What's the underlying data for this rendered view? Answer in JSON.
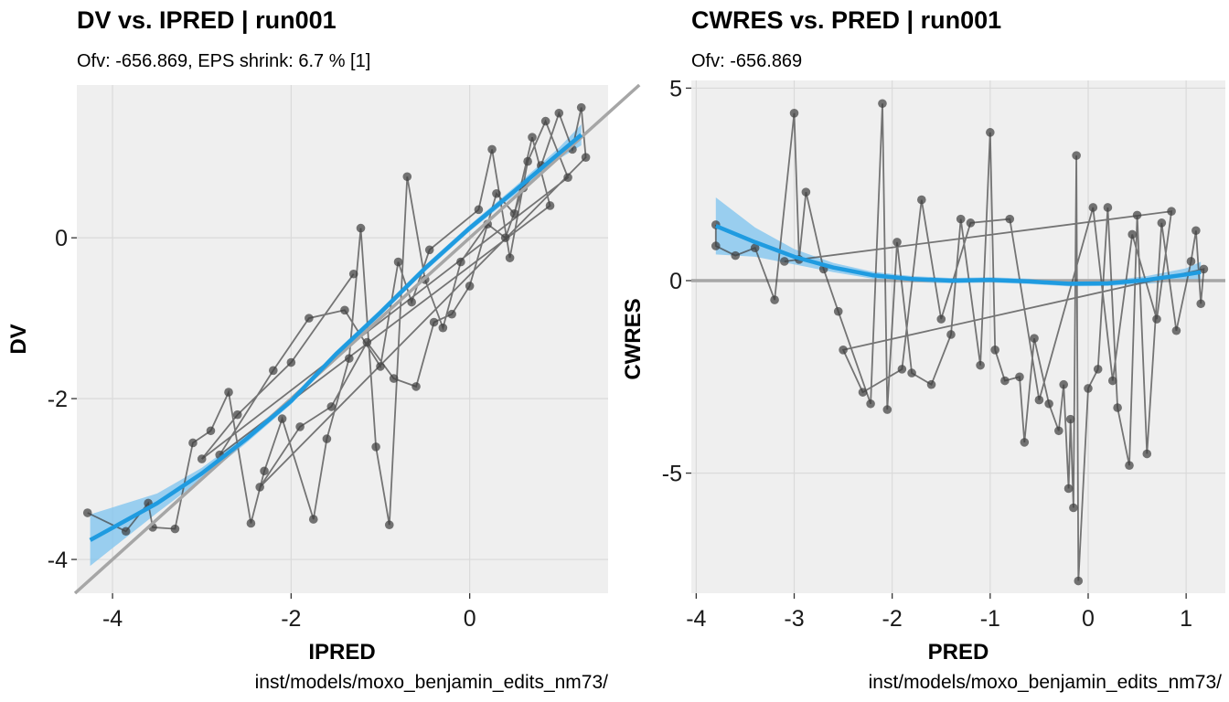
{
  "chart_data": [
    {
      "type": "scatter",
      "title": "DV vs. IPRED | run001",
      "subtitle": "Ofv: -656.869, EPS shrink: 6.7 % [1]",
      "xlabel": "IPRED",
      "ylabel": "DV",
      "caption": "inst/models/moxo_benjamin_edits_nm73/",
      "xlim": [
        -4.4,
        1.55
      ],
      "ylim": [
        -4.42,
        1.9
      ],
      "xticks": [
        -4,
        -2,
        0
      ],
      "xtick_labels": [
        "-4",
        "-2",
        "0"
      ],
      "yticks": [
        -4,
        -2,
        0
      ],
      "ytick_labels": [
        "-4",
        "-2",
        "0"
      ],
      "grid": true,
      "reference_line": {
        "type": "identity",
        "color": "#a6a6a6"
      },
      "colors": {
        "points": "#404040",
        "smooth": "#1f9be0",
        "ribbon": "#7cc3ef",
        "panel": "#efefef",
        "grid": "#dadada"
      },
      "smooth": {
        "x": [
          -4.25,
          -3.5,
          -3.0,
          -2.5,
          -2.0,
          -1.5,
          -1.0,
          -0.5,
          0.0,
          0.5,
          1.0,
          1.25
        ],
        "y": [
          -3.76,
          -3.3,
          -2.93,
          -2.5,
          -2.03,
          -1.45,
          -0.93,
          -0.38,
          0.12,
          0.58,
          1.05,
          1.28
        ],
        "ymin": [
          -4.08,
          -3.42,
          -3.0,
          -2.55,
          -2.07,
          -1.49,
          -0.97,
          -0.42,
          0.08,
          0.53,
          0.98,
          1.15
        ],
        "ymax": [
          -3.44,
          -3.18,
          -2.86,
          -2.45,
          -1.99,
          -1.41,
          -0.89,
          -0.34,
          0.16,
          0.63,
          1.12,
          1.41
        ]
      },
      "points": {
        "x": [
          -4.28,
          -3.85,
          -3.6,
          -3.55,
          -3.3,
          -3.1,
          -2.9,
          -2.7,
          -2.45,
          -2.3,
          -2.1,
          -1.75,
          -1.6,
          -1.35,
          -1.22,
          -1.05,
          -0.9,
          -0.7,
          -0.5,
          -0.3,
          -0.1,
          0.2,
          0.4,
          0.6,
          0.8,
          1.0,
          1.15,
          1.25,
          1.3,
          -2.35,
          -1.9,
          -1.55,
          -1.15,
          -0.85,
          -0.6,
          -0.4,
          -0.2,
          0.0,
          0.3,
          0.5,
          0.7,
          0.9,
          -2.8,
          -2.2,
          -1.8,
          -1.4,
          -1.0,
          -0.8,
          -0.65,
          -0.45,
          0.1,
          0.25,
          0.45,
          0.65,
          0.85,
          1.1,
          -3.0,
          -2.6,
          -2.0,
          -1.3
        ],
        "y": [
          -3.42,
          -3.65,
          -3.3,
          -3.6,
          -3.62,
          -2.55,
          -2.4,
          -1.92,
          -3.55,
          -2.9,
          -2.25,
          -3.5,
          -2.5,
          -1.5,
          0.12,
          -2.6,
          -3.57,
          0.76,
          -0.52,
          -1.12,
          -0.3,
          0.17,
          0.0,
          0.62,
          0.9,
          1.55,
          1.1,
          1.62,
          1.0,
          -3.1,
          -2.35,
          -2.1,
          -1.3,
          -1.75,
          -1.85,
          -1.05,
          -0.95,
          -0.6,
          0.55,
          0.3,
          1.25,
          0.4,
          -2.7,
          -1.65,
          -1.0,
          -0.9,
          -1.6,
          -0.3,
          -0.8,
          -0.15,
          0.35,
          1.1,
          -0.25,
          0.95,
          1.45,
          0.75,
          -2.75,
          -2.2,
          -1.55,
          -0.45
        ]
      }
    },
    {
      "type": "scatter",
      "title": "CWRES vs. PRED | run001",
      "subtitle": "Ofv: -656.869",
      "xlabel": "PRED",
      "ylabel": "CWRES",
      "caption": "inst/models/moxo_benjamin_edits_nm73/",
      "xlim": [
        -4.05,
        1.4
      ],
      "ylim": [
        -8.12,
        5.2
      ],
      "xticks": [
        -4,
        -3,
        -2,
        -1,
        0,
        1
      ],
      "xtick_labels": [
        "-4",
        "-3",
        "-2",
        "-1",
        "0",
        "1"
      ],
      "yticks": [
        -5,
        0,
        5
      ],
      "ytick_labels": [
        "-5",
        "0",
        "5"
      ],
      "grid": true,
      "reference_line": {
        "type": "horizontal",
        "y": 0,
        "color": "#a6a6a6"
      },
      "colors": {
        "points": "#404040",
        "smooth": "#1f9be0",
        "ribbon": "#7cc3ef",
        "panel": "#efefef",
        "grid": "#dadada"
      },
      "smooth": {
        "x": [
          -3.8,
          -3.4,
          -3.0,
          -2.6,
          -2.2,
          -1.8,
          -1.4,
          -1.0,
          -0.6,
          -0.2,
          0.2,
          0.6,
          1.0,
          1.15
        ],
        "y": [
          1.42,
          1.0,
          0.62,
          0.34,
          0.14,
          0.04,
          0.0,
          0.02,
          -0.02,
          -0.08,
          -0.07,
          0.02,
          0.16,
          0.22
        ],
        "ymin": [
          0.68,
          0.62,
          0.42,
          0.22,
          0.05,
          -0.04,
          -0.07,
          -0.05,
          -0.09,
          -0.15,
          -0.14,
          -0.08,
          0.0,
          -0.05
        ],
        "ymax": [
          2.16,
          1.38,
          0.82,
          0.46,
          0.23,
          0.12,
          0.07,
          0.09,
          0.05,
          -0.01,
          0.0,
          0.12,
          0.32,
          0.49
        ]
      },
      "points": {
        "x": [
          -3.8,
          -3.8,
          -3.6,
          -3.4,
          -3.2,
          -3.0,
          -2.95,
          -2.88,
          -2.7,
          -2.55,
          -2.22,
          -2.1,
          -2.05,
          -1.95,
          -1.8,
          -1.6,
          -1.4,
          -1.3,
          -1.1,
          -1.0,
          -0.95,
          -0.85,
          -0.7,
          -0.65,
          -0.55,
          -0.4,
          -0.3,
          -0.25,
          -0.2,
          -0.18,
          -0.15,
          -0.12,
          -0.1,
          0.0,
          0.1,
          0.2,
          0.3,
          0.42,
          0.5,
          0.6,
          0.75,
          0.9,
          1.05,
          1.1,
          1.15,
          1.18,
          -2.5,
          -2.3,
          -1.9,
          -1.7,
          -1.5,
          -1.2,
          -0.8,
          -0.5,
          0.05,
          0.25,
          0.45,
          0.7,
          0.85,
          -3.1
        ],
        "y": [
          1.45,
          0.9,
          0.65,
          0.85,
          -0.5,
          4.35,
          0.55,
          2.3,
          0.3,
          -0.8,
          -3.2,
          4.6,
          -3.35,
          1.0,
          -2.4,
          -2.7,
          -1.4,
          1.6,
          -2.2,
          3.85,
          -1.8,
          -2.6,
          -2.5,
          -4.2,
          -1.5,
          -3.2,
          -3.9,
          -2.7,
          -5.4,
          -3.6,
          -5.9,
          3.25,
          -7.8,
          -2.8,
          -2.3,
          1.9,
          -3.3,
          -4.8,
          1.7,
          -4.5,
          1.5,
          -1.3,
          0.5,
          1.3,
          -0.6,
          0.3,
          -1.8,
          -2.9,
          -2.3,
          2.1,
          -1.0,
          1.5,
          1.6,
          -3.1,
          1.9,
          -2.6,
          1.2,
          -1.0,
          1.8,
          0.5
        ]
      }
    }
  ]
}
